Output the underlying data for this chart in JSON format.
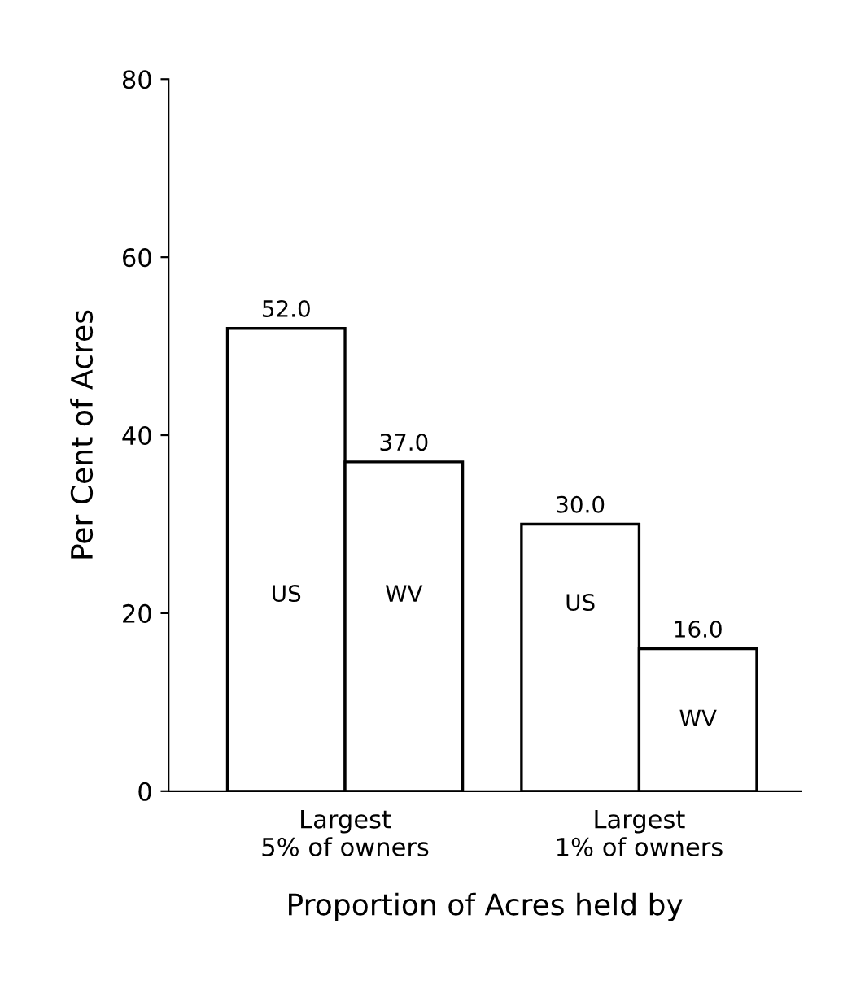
{
  "chart_data": {
    "type": "bar",
    "xlabel": "Proportion of Acres held by",
    "ylabel": "Per Cent of Acres",
    "categories": [
      "Largest\n5% of owners",
      "Largest\n1% of owners"
    ],
    "series": [
      {
        "name": "US",
        "color": "#ffffff",
        "values": [
          52.0,
          30.0
        ],
        "value_labels": [
          "52.0",
          "30.0"
        ]
      },
      {
        "name": "WV",
        "color": "#ffffff",
        "values": [
          37.0,
          16.0
        ],
        "value_labels": [
          "37.0",
          "16.0"
        ]
      }
    ],
    "ylim": [
      0,
      80
    ],
    "yticks": [
      0,
      20,
      40,
      60,
      80
    ],
    "grid": false,
    "legend": false
  }
}
